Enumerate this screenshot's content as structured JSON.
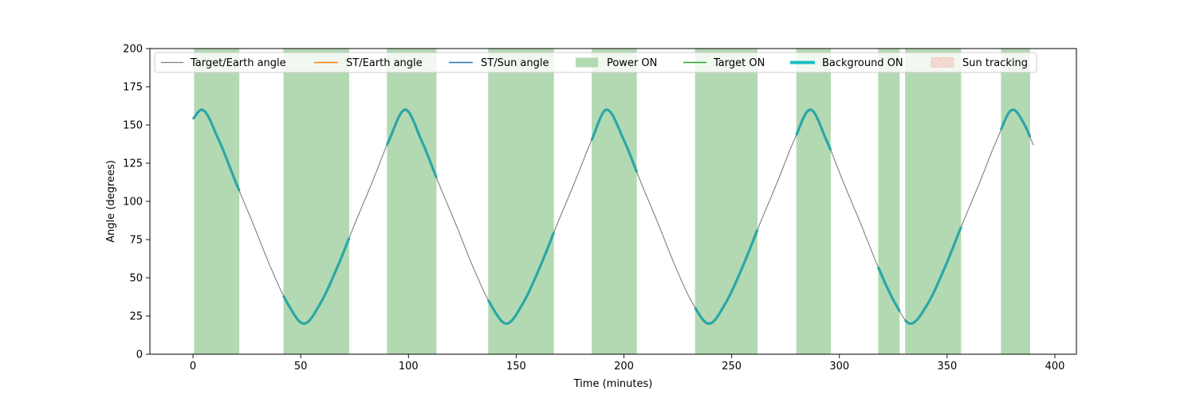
{
  "chart_data": {
    "type": "line",
    "title": "",
    "xlabel": "Time (minutes)",
    "ylabel": "Angle (degrees)",
    "xlim": [
      -20,
      410
    ],
    "ylim": [
      0,
      200
    ],
    "x_ticks": [
      0,
      50,
      100,
      150,
      200,
      250,
      300,
      350,
      400
    ],
    "y_ticks": [
      0,
      25,
      50,
      75,
      100,
      125,
      150,
      175,
      200
    ],
    "grid": false,
    "legend_placement": "top",
    "series": [
      {
        "name": "Target/Earth angle",
        "color": "#808080",
        "x": [
          0,
          4,
          12,
          20,
          28,
          36,
          44,
          51.5,
          59,
          67,
          75,
          83,
          91,
          98.5,
          106,
          114,
          122,
          130,
          138,
          145.5,
          153,
          161,
          169,
          177,
          185,
          192,
          200,
          208,
          216,
          224,
          232,
          239.5,
          247,
          255,
          263,
          271,
          279,
          286.5,
          294,
          302,
          310,
          318,
          326,
          333,
          341,
          349,
          357,
          365,
          373,
          380.5,
          386,
          390
        ],
        "y": [
          154,
          160,
          140,
          112,
          85,
          57,
          33,
          20,
          33,
          57,
          85,
          112,
          140,
          160,
          140,
          112,
          85,
          57,
          33,
          20,
          33,
          57,
          85,
          112,
          140,
          160,
          140,
          112,
          85,
          57,
          33,
          20,
          33,
          57,
          85,
          112,
          140,
          160,
          140,
          112,
          85,
          57,
          33,
          20,
          33,
          57,
          85,
          112,
          140,
          160,
          150,
          137
        ]
      },
      {
        "name": "ST/Earth angle",
        "color": "#ff7f0e",
        "x": [],
        "y": []
      },
      {
        "name": "ST/Sun angle",
        "color": "#1f77b4",
        "x": [],
        "y": []
      }
    ],
    "power_on": {
      "name": "Power ON",
      "color": "#b3d9b3",
      "intervals": [
        [
          0.5,
          21.5
        ],
        [
          42,
          72.5
        ],
        [
          90,
          113
        ],
        [
          137,
          167.5
        ],
        [
          185,
          206
        ],
        [
          233,
          262
        ],
        [
          280,
          296
        ],
        [
          318,
          328
        ],
        [
          330.5,
          356.5
        ],
        [
          375,
          388.5
        ]
      ]
    },
    "target_on": {
      "name": "Target ON",
      "color": "#2ca02c"
    },
    "background_on": {
      "name": "Background ON",
      "color": "#2ca6a4",
      "legend_color": "#17bec4",
      "intervals": [
        [
          0,
          21.5
        ],
        [
          42,
          72.5
        ],
        [
          90,
          113
        ],
        [
          137,
          167.5
        ],
        [
          185,
          206
        ],
        [
          233,
          262
        ],
        [
          280,
          296
        ],
        [
          318,
          328
        ],
        [
          330.5,
          356.5
        ],
        [
          375,
          388.5
        ]
      ]
    },
    "sun_tracking": {
      "name": "Sun tracking",
      "color": "#f4c6c0"
    }
  }
}
